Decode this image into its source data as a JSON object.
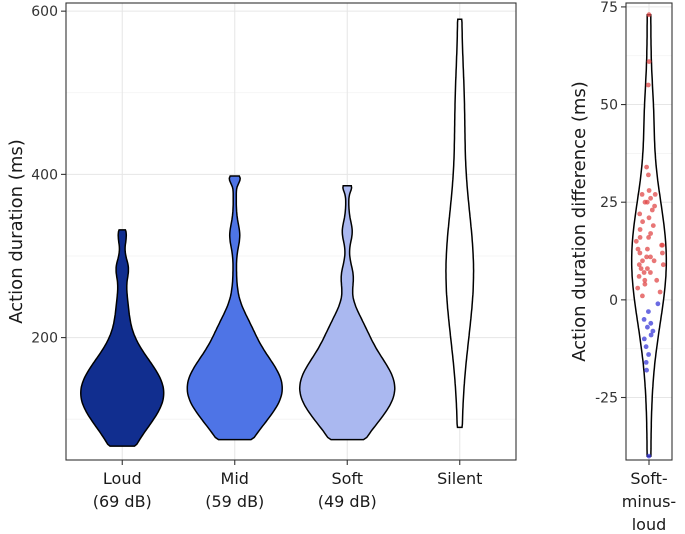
{
  "chart_data": [
    {
      "type": "violin",
      "xlabel": "",
      "ylabel": "Action duration (ms)",
      "ylim": [
        50,
        610
      ],
      "yticks": [
        200,
        400,
        600
      ],
      "grid": true,
      "categories": [
        {
          "line1": "Loud",
          "line2": "(69 dB)",
          "fill": "#112e8f",
          "min": 67,
          "max": 332,
          "mode": 135
        },
        {
          "line1": "Mid",
          "line2": "(59 dB)",
          "fill": "#4e74e6",
          "min": 75,
          "max": 398,
          "mode": 140
        },
        {
          "line1": "Soft",
          "line2": "(49 dB)",
          "fill": "#aab8f0",
          "min": 75,
          "max": 386,
          "mode": 140
        },
        {
          "line1": "Silent",
          "line2": "",
          "fill": "#ffffff",
          "min": 90,
          "max": 590,
          "mode": 280
        }
      ]
    },
    {
      "type": "violin",
      "xlabel": "",
      "ylabel": "Action duration difference (ms)",
      "ylim": [
        -41,
        76
      ],
      "yticks": [
        -25,
        0,
        25,
        50,
        75
      ],
      "grid": true,
      "categories": [
        {
          "line1": "Soft-",
          "line2": "minus-",
          "line3": "loud",
          "fill": "#ffffff",
          "min": -40,
          "max": 73
        }
      ],
      "points_positive_color": "#e04848",
      "points_negative_color": "#3a3ad8",
      "points": [
        73,
        61,
        55,
        34,
        32,
        28,
        27,
        27,
        26,
        25,
        25,
        24,
        23,
        22,
        21,
        20,
        19,
        18,
        17,
        16,
        16,
        15,
        14,
        14,
        13,
        13,
        12,
        12,
        11,
        11,
        10,
        10,
        9,
        9,
        8,
        8,
        7,
        7,
        6,
        5,
        5,
        4,
        3,
        2,
        1,
        -1,
        -3,
        -5,
        -6,
        -7,
        -8,
        -9,
        -10,
        -12,
        -14,
        -16,
        -18,
        -40
      ]
    }
  ]
}
